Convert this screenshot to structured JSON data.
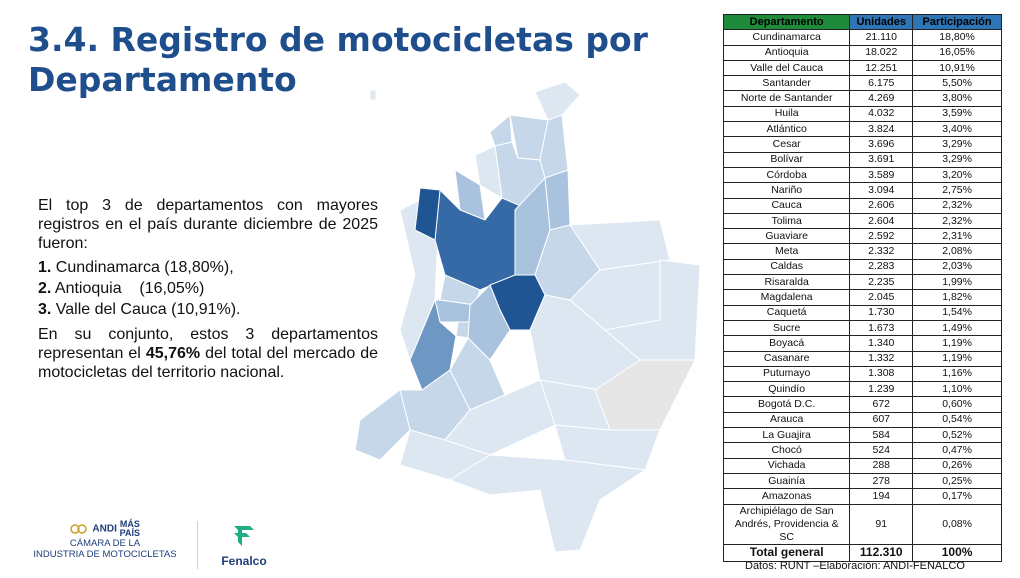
{
  "title": "3.4. Registro de motocicletas por Departamento",
  "intro": "El top 3 de departamentos con mayores registros en el país durante diciembre de 2025 fueron:",
  "top3": [
    {
      "num": "1.",
      "text": " Cundinamarca (18,80%),"
    },
    {
      "num": "2.",
      "text": " Antioquia    (16,05%)"
    },
    {
      "num": "3.",
      "text": " Valle del Cauca (10,91%)."
    }
  ],
  "summary": {
    "before": "En su conjunto, estos 3 departamentos representan el ",
    "highlight": "45,76%",
    "after": " del total del mercado de motocicletas del territorio nacional."
  },
  "table": {
    "headers": [
      "Departamento",
      "Unidades",
      "Participación"
    ],
    "rows": [
      [
        "Cundinamarca",
        "21.110",
        "18,80%"
      ],
      [
        "Antioquia",
        "18.022",
        "16,05%"
      ],
      [
        "Valle del Cauca",
        "12.251",
        "10,91%"
      ],
      [
        "Santander",
        "6.175",
        "5,50%"
      ],
      [
        "Norte de Santander",
        "4.269",
        "3,80%"
      ],
      [
        "Huila",
        "4.032",
        "3,59%"
      ],
      [
        "Atlántico",
        "3.824",
        "3,40%"
      ],
      [
        "Cesar",
        "3.696",
        "3,29%"
      ],
      [
        "Bolívar",
        "3.691",
        "3,29%"
      ],
      [
        "Córdoba",
        "3.589",
        "3,20%"
      ],
      [
        "Nariño",
        "3.094",
        "2,75%"
      ],
      [
        "Cauca",
        "2.606",
        "2,32%"
      ],
      [
        "Tolima",
        "2.604",
        "2,32%"
      ],
      [
        "Guaviare",
        "2.592",
        "2,31%"
      ],
      [
        "Meta",
        "2.332",
        "2,08%"
      ],
      [
        "Caldas",
        "2.283",
        "2,03%"
      ],
      [
        "Risaralda",
        "2.235",
        "1,99%"
      ],
      [
        "Magdalena",
        "2.045",
        "1,82%"
      ],
      [
        "Caquetá",
        "1.730",
        "1,54%"
      ],
      [
        "Sucre",
        "1.673",
        "1,49%"
      ],
      [
        "Boyacá",
        "1.340",
        "1,19%"
      ],
      [
        "Casanare",
        "1.332",
        "1,19%"
      ],
      [
        "Putumayo",
        "1.308",
        "1,16%"
      ],
      [
        "Quindío",
        "1.239",
        "1,10%"
      ],
      [
        "Bogotá D.C.",
        "672",
        "0,60%"
      ],
      [
        "Arauca",
        "607",
        "0,54%"
      ],
      [
        "La Guajira",
        "584",
        "0,52%"
      ],
      [
        "Chocó",
        "524",
        "0,47%"
      ],
      [
        "Vichada",
        "288",
        "0,26%"
      ],
      [
        "Guainía",
        "278",
        "0,25%"
      ],
      [
        "Amazonas",
        "194",
        "0,17%"
      ],
      [
        "Archipiélago de San Andrés, Providencia & SC",
        "91",
        "0,08%"
      ]
    ],
    "total": [
      "Total general",
      "112.310",
      "100%"
    ]
  },
  "source": "Datos: RUNT –Elaboración: ANDI-FENALCO",
  "logos": {
    "andi_name": "ANDI",
    "andi_mas": "MÁS",
    "andi_pais": "PAÍS",
    "andi_line1": "CÁMARA DE LA",
    "andi_line2": "INDUSTRIA DE MOTOCICLETAS",
    "fenalco": "Fenalco"
  },
  "map_colors": {
    "very_light": "#dce7f2",
    "light": "#c6d7ea",
    "medium_light": "#a9c3df",
    "medium": "#6f97c4",
    "dark": "#356aa6",
    "darkest": "#1f5593",
    "no_data": "#e6e6e6",
    "brand_blue": "#1f4e8c",
    "fenalco_green": "#1fae86"
  }
}
